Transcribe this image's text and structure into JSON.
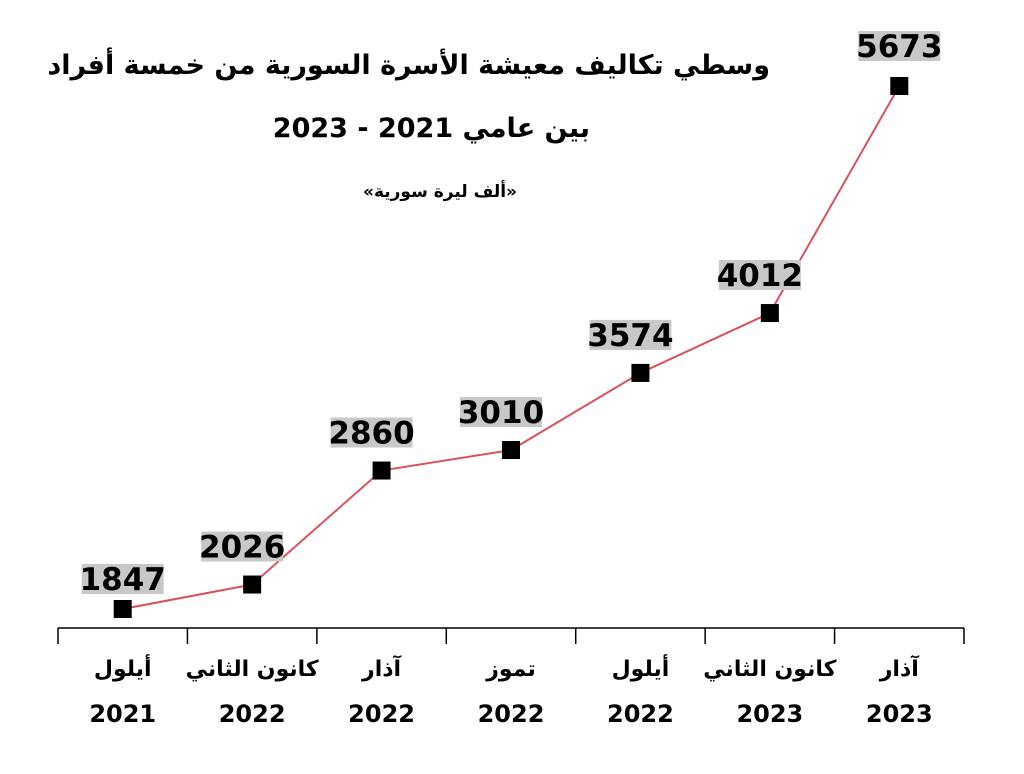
{
  "title": {
    "line1": "وسطي تكاليف معيشة الأسرة السورية من خمسة أفراد",
    "line2": "بين عامي 2021 - 2023",
    "unit": "«ألف ليرة سورية»"
  },
  "colors": {
    "line": "#d9535f",
    "marker": "#000000",
    "label_bg": "#c8c8c8",
    "axis": "#000000"
  },
  "chart_data": {
    "type": "line",
    "title": "وسطي تكاليف معيشة الأسرة السورية من خمسة أفراد بين عامي 2021 - 2023",
    "ylabel": "«ألف ليرة سورية»",
    "categories": [
      {
        "month": "أيلول",
        "year": "2021"
      },
      {
        "month": "كانون الثاني",
        "year": "2022"
      },
      {
        "month": "آذار",
        "year": "2022"
      },
      {
        "month": "تموز",
        "year": "2022"
      },
      {
        "month": "أيلول",
        "year": "2022"
      },
      {
        "month": "كانون الثاني",
        "year": "2023"
      },
      {
        "month": "آذار",
        "year": "2023"
      }
    ],
    "values": [
      1847,
      2026,
      2860,
      3010,
      3574,
      4012,
      5673
    ],
    "grid": false,
    "legend": "none"
  }
}
